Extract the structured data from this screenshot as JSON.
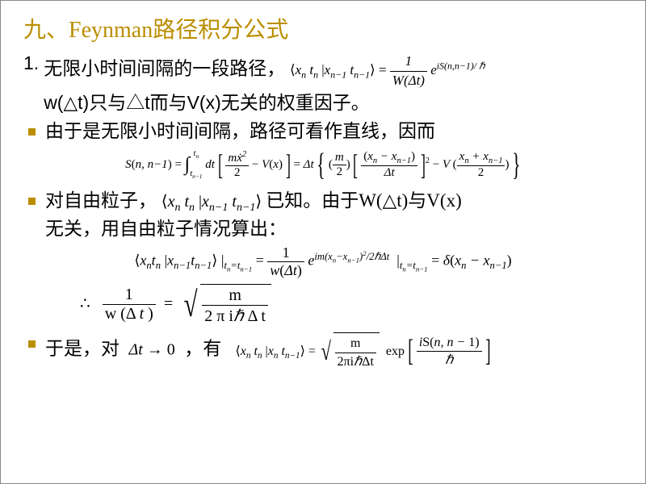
{
  "title": "九、Feynman路径积分公式",
  "line1a": "无限小时间间隔的一段路径，",
  "eq1_lhs": "⟨x_n t_n | x_{n-1} t_{n-1}⟩",
  "eq1_rhs_num": "1",
  "eq1_rhs_den": "W(Δt)",
  "eq1_exp": "e^{iS(n,n−1)/ℏ}",
  "line1b": "w(△t)只与△t而与V(x)无关的权重因子。",
  "line2": "由于是无限小时间间隔，路径可看作直线，因而",
  "eq2_Slhs": "S(n, n−1)",
  "eq2_int_lo": "t_{n-1}",
  "eq2_int_hi": "t_n",
  "eq2_dt": "dt",
  "eq2_br1_num": "mẋ²",
  "eq2_br1_den": "2",
  "eq2_br1_minus": "− V(x)",
  "eq2_eq": "= Δt",
  "eq2_m_num": "m",
  "eq2_m_den": "2",
  "eq2_dx_num": "(x_n − x_{n-1})",
  "eq2_dx_den": "Δt",
  "eq2_V_num": "x_n + x_{n-1}",
  "eq2_V_den": "2",
  "line3a": "对自由粒子，",
  "line3b": "已知。由于W(△t)与V(x)",
  "line3c": "无关，用自由粒子情况算出：",
  "eq3_lhs": "⟨x_n t_n | x_{n-1} t_{n-1}⟩",
  "eq3_sub": "t_n = t_{n-1}",
  "eq3_num": "1",
  "eq3_den": "w(Δt)",
  "eq3_exp": "e^{im(x_n−x_{n-1})²/2ℏΔt}",
  "eq3_rhs": "= δ(x_n − x_{n-1})",
  "eq4_pre": "∴",
  "eq4_lnum": "1",
  "eq4_lden": "w (Δ t)",
  "eq4_rnum": "m",
  "eq4_rden": "2 π iℏ Δ t",
  "line5": "于是，对",
  "eq5_lim": "Δt → 0",
  "line5b": "，有",
  "eq5_lhs": "⟨x_n t_n | x_n t_{n-1}⟩",
  "eq5_sqrt_num": "m",
  "eq5_sqrt_den": "2πiℏΔt",
  "eq5_exp_num": "iS(n, n − 1)",
  "eq5_exp_den": "ℏ",
  "colors": {
    "accent": "#bb8d00",
    "text": "#000000",
    "bg": "#ffffff"
  },
  "font_sizes": {
    "title": 28,
    "body": 23,
    "math_small": 17
  }
}
